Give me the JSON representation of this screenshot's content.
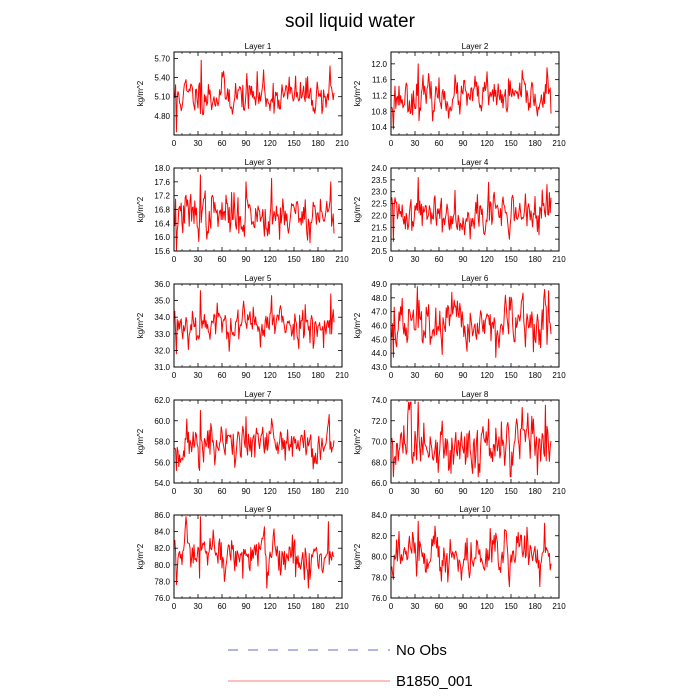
{
  "figure": {
    "title": "soil liquid water",
    "series_color": "#ff0000",
    "obs_color": "#6a6ac8"
  },
  "legend": {
    "items": [
      {
        "label": "No Obs",
        "style": "dashed",
        "color": "#6a6ac8"
      },
      {
        "label": "B1850_001",
        "style": "solid",
        "color": "#ff0000"
      }
    ]
  },
  "chart_data": [
    {
      "type": "line",
      "title": "Layer 1",
      "ylabel": "kg/m^2",
      "xlim": [
        0,
        210
      ],
      "ylim": [
        4.5,
        5.8
      ],
      "xticks": [
        0,
        30,
        60,
        90,
        120,
        150,
        180,
        210
      ],
      "yticks": [
        4.8,
        5.1,
        5.4,
        5.7
      ],
      "ytick_labels": [
        "4.80",
        "5.10",
        "5.40",
        "5.70"
      ],
      "x": [
        1,
        200
      ],
      "min": 4.55,
      "max": 5.67,
      "mean": 5.12,
      "sd": 0.14,
      "seed": 11,
      "peaks": [
        [
          3,
          4.55
        ],
        [
          34,
          5.67
        ],
        [
          60,
          5.48
        ],
        [
          112,
          5.52
        ],
        [
          195,
          5.58
        ]
      ]
    },
    {
      "type": "line",
      "title": "Layer 2",
      "ylabel": "kg/m^2",
      "xlim": [
        0,
        210
      ],
      "ylim": [
        10.2,
        12.3
      ],
      "xticks": [
        0,
        30,
        60,
        90,
        120,
        150,
        180,
        210
      ],
      "yticks": [
        10.4,
        10.8,
        11.2,
        11.6,
        12.0
      ],
      "ytick_labels": [
        "10.4",
        "10.8",
        "11.2",
        "11.6",
        "12.0"
      ],
      "x": [
        1,
        200
      ],
      "min": 10.35,
      "max": 12.0,
      "mean": 11.15,
      "sd": 0.22,
      "seed": 23,
      "peaks": [
        [
          3,
          10.35
        ],
        [
          34,
          12.0
        ],
        [
          120,
          11.8
        ],
        [
          195,
          11.9
        ]
      ]
    },
    {
      "type": "line",
      "title": "Layer 3",
      "ylabel": "kg/m^2",
      "xlim": [
        0,
        210
      ],
      "ylim": [
        15.6,
        18.0
      ],
      "xticks": [
        0,
        30,
        60,
        90,
        120,
        150,
        180,
        210
      ],
      "yticks": [
        15.6,
        16.0,
        16.4,
        16.8,
        17.2,
        17.6,
        18.0
      ],
      "ytick_labels": [
        "15.6",
        "16.0",
        "16.4",
        "16.8",
        "17.2",
        "17.6",
        "18.0"
      ],
      "x": [
        1,
        200
      ],
      "min": 15.6,
      "max": 17.8,
      "mean": 16.65,
      "sd": 0.3,
      "seed": 37,
      "peaks": [
        [
          3,
          15.6
        ],
        [
          33,
          17.8
        ],
        [
          90,
          17.6
        ],
        [
          122,
          17.7
        ],
        [
          196,
          17.6
        ]
      ]
    },
    {
      "type": "line",
      "title": "Layer 4",
      "ylabel": "kg/m^2",
      "xlim": [
        0,
        210
      ],
      "ylim": [
        20.5,
        24.0
      ],
      "xticks": [
        0,
        30,
        60,
        90,
        120,
        150,
        180,
        210
      ],
      "yticks": [
        20.5,
        21.0,
        21.5,
        22.0,
        22.5,
        23.0,
        23.5,
        24.0
      ],
      "ytick_labels": [
        "20.5",
        "21.0",
        "21.5",
        "22.0",
        "22.5",
        "23.0",
        "23.5",
        "24.0"
      ],
      "x": [
        1,
        200
      ],
      "min": 20.9,
      "max": 23.6,
      "mean": 22.1,
      "sd": 0.4,
      "seed": 41,
      "peaks": [
        [
          3,
          20.9
        ],
        [
          34,
          23.6
        ],
        [
          122,
          23.4
        ],
        [
          195,
          23.3
        ]
      ]
    },
    {
      "type": "line",
      "title": "Layer 5",
      "ylabel": "kg/m^2",
      "xlim": [
        0,
        210
      ],
      "ylim": [
        31.0,
        36.0
      ],
      "xticks": [
        0,
        30,
        60,
        90,
        120,
        150,
        180,
        210
      ],
      "yticks": [
        31.0,
        32.0,
        33.0,
        34.0,
        35.0,
        36.0
      ],
      "ytick_labels": [
        "31.0",
        "32.0",
        "33.0",
        "34.0",
        "35.0",
        "36.0"
      ],
      "x": [
        1,
        200
      ],
      "min": 31.8,
      "max": 35.6,
      "mean": 33.6,
      "sd": 0.55,
      "seed": 53,
      "peaks": [
        [
          3,
          31.8
        ],
        [
          33,
          35.6
        ],
        [
          122,
          35.3
        ],
        [
          196,
          35.4
        ]
      ]
    },
    {
      "type": "line",
      "title": "Layer 6",
      "ylabel": "kg/m^2",
      "xlim": [
        0,
        210
      ],
      "ylim": [
        43.0,
        49.0
      ],
      "xticks": [
        0,
        30,
        60,
        90,
        120,
        150,
        180,
        210
      ],
      "yticks": [
        43.0,
        44.0,
        45.0,
        46.0,
        47.0,
        48.0,
        49.0
      ],
      "ytick_labels": [
        "43.0",
        "44.0",
        "45.0",
        "46.0",
        "47.0",
        "48.0",
        "49.0"
      ],
      "x": [
        1,
        200
      ],
      "min": 43.7,
      "max": 48.8,
      "mean": 46.0,
      "sd": 0.85,
      "seed": 67,
      "peaks": [
        [
          3,
          43.7
        ],
        [
          33,
          48.8
        ],
        [
          178,
          44.1
        ],
        [
          192,
          48.6
        ],
        [
          197,
          48.5
        ]
      ]
    },
    {
      "type": "line",
      "title": "Layer 7",
      "ylabel": "kg/m^2",
      "xlim": [
        0,
        210
      ],
      "ylim": [
        54.0,
        62.0
      ],
      "xticks": [
        0,
        30,
        60,
        90,
        120,
        150,
        180,
        210
      ],
      "yticks": [
        54.0,
        56.0,
        58.0,
        60.0,
        62.0
      ],
      "ytick_labels": [
        "54.0",
        "56.0",
        "58.0",
        "60.0",
        "62.0"
      ],
      "x": [
        1,
        200
      ],
      "min": 55.2,
      "max": 61.0,
      "mean": 57.7,
      "sd": 1.0,
      "seed": 71,
      "peaks": [
        [
          3,
          55.2
        ],
        [
          33,
          61.0
        ],
        [
          90,
          60.4
        ],
        [
          122,
          60.2
        ],
        [
          194,
          60.6
        ]
      ]
    },
    {
      "type": "line",
      "title": "Layer 8",
      "ylabel": "kg/m^2",
      "xlim": [
        0,
        210
      ],
      "ylim": [
        66.0,
        74.0
      ],
      "xticks": [
        0,
        30,
        60,
        90,
        120,
        150,
        180,
        210
      ],
      "yticks": [
        66.0,
        68.0,
        70.0,
        72.0,
        74.0
      ],
      "ytick_labels": [
        "66.0",
        "68.0",
        "70.0",
        "72.0",
        "74.0"
      ],
      "x": [
        1,
        200
      ],
      "min": 66.6,
      "max": 73.8,
      "mean": 69.6,
      "sd": 1.3,
      "seed": 83,
      "peaks": [
        [
          3,
          66.6
        ],
        [
          34,
          73.8
        ],
        [
          183,
          66.8
        ],
        [
          193,
          73.5
        ]
      ]
    },
    {
      "type": "line",
      "title": "Layer 9",
      "ylabel": "kg/m^2",
      "xlim": [
        0,
        210
      ],
      "ylim": [
        76.0,
        86.0
      ],
      "xticks": [
        0,
        30,
        60,
        90,
        120,
        150,
        180,
        210
      ],
      "yticks": [
        76.0,
        78.0,
        80.0,
        82.0,
        84.0,
        86.0
      ],
      "ytick_labels": [
        "76.0",
        "78.0",
        "80.0",
        "82.0",
        "84.0",
        "86.0"
      ],
      "x": [
        1,
        200
      ],
      "min": 77.2,
      "max": 85.8,
      "mean": 81.0,
      "sd": 1.4,
      "seed": 97,
      "peaks": [
        [
          3,
          77.6
        ],
        [
          33,
          85.8
        ],
        [
          168,
          77.2
        ],
        [
          193,
          85.2
        ]
      ]
    },
    {
      "type": "line",
      "title": "Layer 10",
      "ylabel": "kg/m^2",
      "xlim": [
        0,
        210
      ],
      "ylim": [
        76.0,
        84.0
      ],
      "xticks": [
        0,
        30,
        60,
        90,
        120,
        150,
        180,
        210
      ],
      "yticks": [
        76.0,
        78.0,
        80.0,
        82.0,
        84.0
      ],
      "ytick_labels": [
        "76.0",
        "78.0",
        "80.0",
        "82.0",
        "84.0"
      ],
      "x": [
        1,
        200
      ],
      "min": 77.1,
      "max": 83.4,
      "mean": 80.2,
      "sd": 1.0,
      "seed": 103,
      "peaks": [
        [
          3,
          77.8
        ],
        [
          34,
          83.4
        ],
        [
          186,
          77.1
        ],
        [
          192,
          83.2
        ]
      ]
    }
  ]
}
